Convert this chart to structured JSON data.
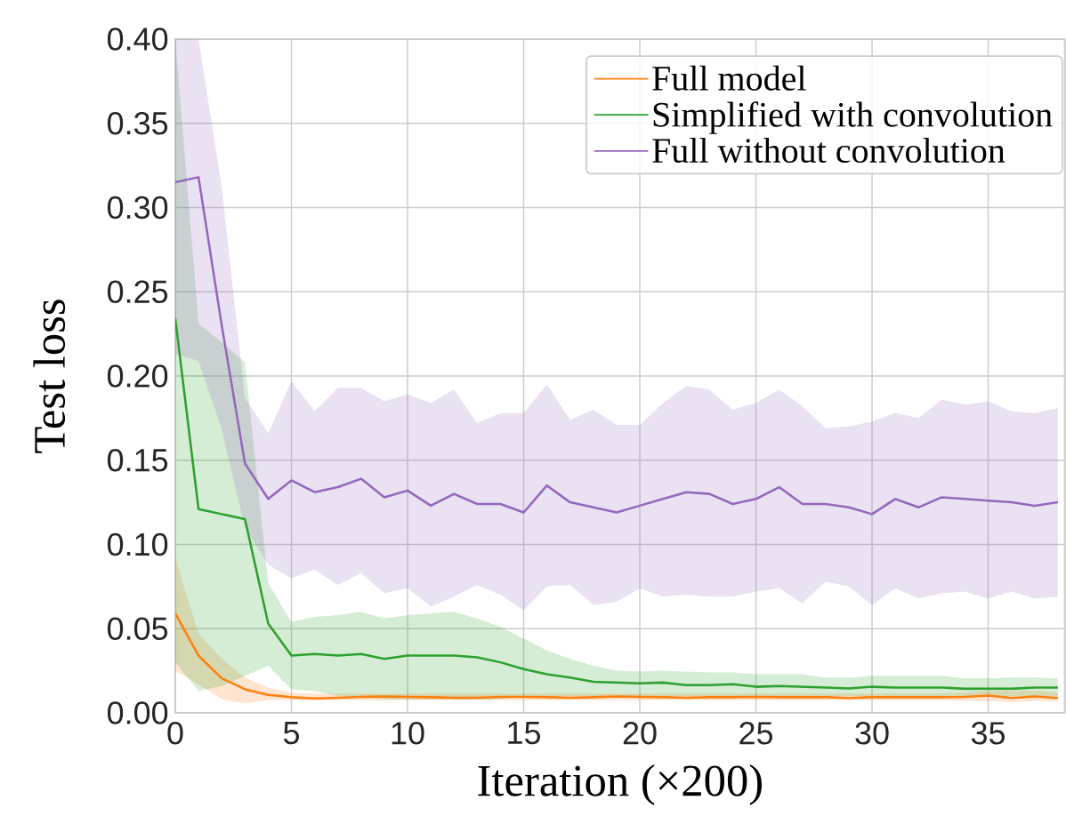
{
  "chart_data": {
    "type": "line",
    "xlabel": "Iteration (×200)",
    "ylabel": "Test loss",
    "x": [
      0,
      1,
      2,
      3,
      4,
      5,
      6,
      7,
      8,
      9,
      10,
      11,
      12,
      13,
      14,
      15,
      16,
      17,
      18,
      19,
      20,
      21,
      22,
      23,
      24,
      25,
      26,
      27,
      28,
      29,
      30,
      31,
      32,
      33,
      34,
      35,
      36,
      37,
      38
    ],
    "xlim": [
      0,
      38.3
    ],
    "xticks": [
      0,
      5,
      10,
      15,
      20,
      25,
      30,
      35
    ],
    "ylim": [
      0,
      0.4
    ],
    "yticks": [
      {
        "value": 0,
        "label": "0.00"
      },
      {
        "value": 0.05,
        "label": "0.05"
      },
      {
        "value": 0.1,
        "label": "0.10"
      },
      {
        "value": 0.15,
        "label": "0.15"
      },
      {
        "value": 0.2,
        "label": "0.20"
      },
      {
        "value": 0.25,
        "label": "0.25"
      },
      {
        "value": 0.3,
        "label": "0.30"
      },
      {
        "value": 0.35,
        "label": "0.35"
      },
      {
        "value": 0.4,
        "label": "0.40"
      }
    ],
    "grid": true,
    "legend": "top right",
    "marker": "none",
    "line_style": "solid",
    "series": [
      {
        "name": "Full model",
        "color": "#ff7f0e",
        "values": [
          0.059,
          0.034,
          0.0205,
          0.014,
          0.0107,
          0.0093,
          0.0086,
          0.009,
          0.0095,
          0.0098,
          0.0095,
          0.0093,
          0.009,
          0.009,
          0.0095,
          0.0095,
          0.0093,
          0.009,
          0.0093,
          0.0098,
          0.0095,
          0.0093,
          0.009,
          0.0093,
          0.0093,
          0.0095,
          0.0093,
          0.0093,
          0.0093,
          0.0088,
          0.0093,
          0.0093,
          0.0093,
          0.0093,
          0.0095,
          0.0103,
          0.0088,
          0.0098,
          0.0088
        ],
        "upper": [
          0.092,
          0.047,
          0.032,
          0.021,
          0.015,
          0.012,
          0.0115,
          0.0115,
          0.0115,
          0.0115,
          0.0115,
          0.0115,
          0.0115,
          0.0115,
          0.0115,
          0.0115,
          0.0115,
          0.0115,
          0.0115,
          0.0115,
          0.0115,
          0.0115,
          0.0115,
          0.0115,
          0.0115,
          0.0115,
          0.0115,
          0.0115,
          0.0115,
          0.0115,
          0.0115,
          0.0115,
          0.0115,
          0.0115,
          0.012,
          0.013,
          0.013,
          0.013,
          0.012
        ],
        "lower": [
          0.025,
          0.017,
          0.008,
          0.0055,
          0.0077,
          0.0075,
          0.0075,
          0.0075,
          0.0075,
          0.0075,
          0.0075,
          0.0075,
          0.0075,
          0.0075,
          0.0075,
          0.0075,
          0.0075,
          0.0075,
          0.0075,
          0.0075,
          0.0075,
          0.0075,
          0.0075,
          0.0075,
          0.0075,
          0.0075,
          0.0075,
          0.0075,
          0.0075,
          0.0075,
          0.0075,
          0.0075,
          0.0075,
          0.0075,
          0.007,
          0.007,
          0.0065,
          0.007,
          0.007
        ]
      },
      {
        "name": "Simplified with convolution",
        "color": "#2ca02c",
        "values": [
          0.234,
          0.121,
          0.118,
          0.115,
          0.053,
          0.034,
          0.035,
          0.034,
          0.035,
          0.032,
          0.034,
          0.034,
          0.034,
          0.033,
          0.03,
          0.026,
          0.023,
          0.021,
          0.0185,
          0.018,
          0.0175,
          0.018,
          0.0165,
          0.0165,
          0.017,
          0.0155,
          0.016,
          0.0155,
          0.015,
          0.0145,
          0.0155,
          0.015,
          0.015,
          0.015,
          0.0143,
          0.0143,
          0.0143,
          0.015,
          0.015
        ],
        "upper": [
          0.4,
          0.231,
          0.22,
          0.208,
          0.077,
          0.054,
          0.057,
          0.058,
          0.06,
          0.056,
          0.058,
          0.059,
          0.06,
          0.056,
          0.051,
          0.044,
          0.037,
          0.032,
          0.028,
          0.025,
          0.0245,
          0.025,
          0.0245,
          0.024,
          0.024,
          0.023,
          0.023,
          0.023,
          0.021,
          0.021,
          0.022,
          0.022,
          0.022,
          0.022,
          0.0206,
          0.0206,
          0.021,
          0.021,
          0.0206
        ],
        "lower": [
          0.03,
          0.013,
          0.016,
          0.022,
          0.028,
          0.014,
          0.013,
          0.01,
          0.009,
          0.008,
          0.008,
          0.008,
          0.008,
          0.008,
          0.008,
          0.01,
          0.01,
          0.01,
          0.01,
          0.01,
          0.01,
          0.01,
          0.01,
          0.01,
          0.01,
          0.01,
          0.01,
          0.01,
          0.01,
          0.01,
          0.01,
          0.01,
          0.01,
          0.01,
          0.01,
          0.01,
          0.01,
          0.01,
          0.01
        ]
      },
      {
        "name": "Full without convolution",
        "color": "#9467bd",
        "values": [
          0.315,
          0.318,
          0.23,
          0.148,
          0.127,
          0.138,
          0.131,
          0.134,
          0.139,
          0.128,
          0.132,
          0.123,
          0.13,
          0.124,
          0.124,
          0.119,
          0.135,
          0.125,
          0.122,
          0.119,
          0.123,
          0.127,
          0.131,
          0.13,
          0.124,
          0.127,
          0.134,
          0.124,
          0.124,
          0.122,
          0.118,
          0.127,
          0.122,
          0.128,
          0.127,
          0.126,
          0.125,
          0.123,
          0.125
        ],
        "upper": [
          0.4,
          0.4,
          0.312,
          0.187,
          0.166,
          0.197,
          0.179,
          0.193,
          0.193,
          0.185,
          0.189,
          0.184,
          0.192,
          0.172,
          0.178,
          0.178,
          0.195,
          0.174,
          0.18,
          0.171,
          0.171,
          0.184,
          0.194,
          0.192,
          0.18,
          0.184,
          0.192,
          0.182,
          0.169,
          0.17,
          0.173,
          0.178,
          0.175,
          0.186,
          0.183,
          0.185,
          0.179,
          0.178,
          0.181
        ],
        "lower": [
          0.213,
          0.209,
          0.168,
          0.11,
          0.088,
          0.08,
          0.085,
          0.076,
          0.083,
          0.071,
          0.074,
          0.063,
          0.069,
          0.076,
          0.07,
          0.061,
          0.075,
          0.076,
          0.064,
          0.066,
          0.074,
          0.069,
          0.07,
          0.069,
          0.069,
          0.072,
          0.074,
          0.065,
          0.078,
          0.075,
          0.064,
          0.074,
          0.068,
          0.071,
          0.072,
          0.068,
          0.072,
          0.068,
          0.069
        ]
      }
    ]
  }
}
